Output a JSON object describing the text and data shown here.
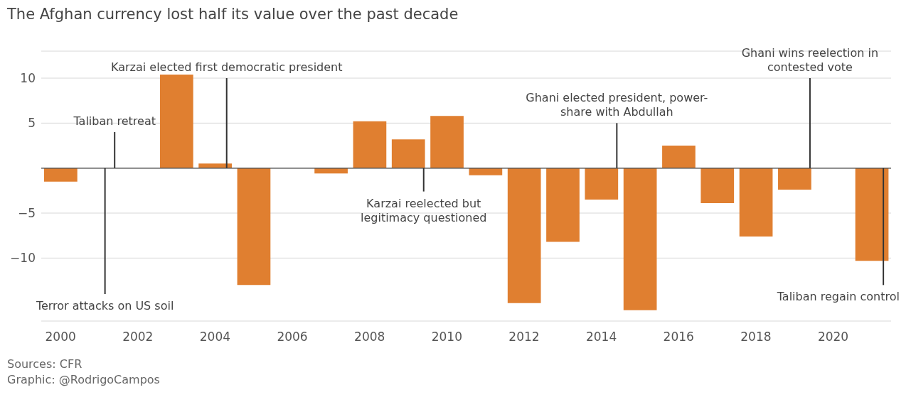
{
  "chart_data": {
    "type": "bar",
    "title": "The Afghan currency lost half its value over the past decade",
    "x": [
      2000,
      2001,
      2002,
      2003,
      2004,
      2005,
      2006,
      2007,
      2008,
      2009,
      2010,
      2011,
      2012,
      2013,
      2014,
      2015,
      2016,
      2017,
      2018,
      2019,
      2020,
      2021
    ],
    "values": [
      -1.5,
      null,
      null,
      10.4,
      0.5,
      -13,
      null,
      -0.6,
      5.2,
      3.2,
      5.8,
      -0.8,
      -15,
      -8.2,
      -3.5,
      -15.8,
      2.5,
      -3.9,
      -7.6,
      -2.4,
      null,
      -10.3
    ],
    "color": "#e07f30",
    "xlim": [
      1999.5,
      2021.5
    ],
    "xticks": [
      2000,
      2002,
      2004,
      2006,
      2008,
      2010,
      2012,
      2014,
      2016,
      2018,
      2020
    ],
    "ylim": [
      -17,
      13
    ],
    "yticks": [
      10,
      5,
      {
        "value": 0,
        "label": null
      },
      -5,
      -10
    ],
    "grid": "y",
    "ref_lines": [
      {
        "axis": "x",
        "value": 2001.4,
        "label": "Taliban retreat"
      },
      {
        "axis": "x",
        "value": 2001.15,
        "label": "Terror attacks on US soil"
      },
      {
        "axis": "x",
        "value": 2004.3,
        "label": "Karzai elected first democratic president"
      },
      {
        "axis": "x",
        "value": 2009.4,
        "label": "Karzai reelected but\nlegitimacy questioned"
      },
      {
        "axis": "x",
        "value": 2014.4,
        "label": "Ghani elected president, power-\nshare with Abdullah"
      },
      {
        "axis": "x",
        "value": 2019.4,
        "label": "Ghani wins reelection in\ncontested vote"
      },
      {
        "axis": "x",
        "value": 2021.3,
        "label": "Taliban regain control"
      }
    ],
    "annotations": [
      "Sources: CFR",
      "Graphic: @RodrigoCampos"
    ]
  }
}
